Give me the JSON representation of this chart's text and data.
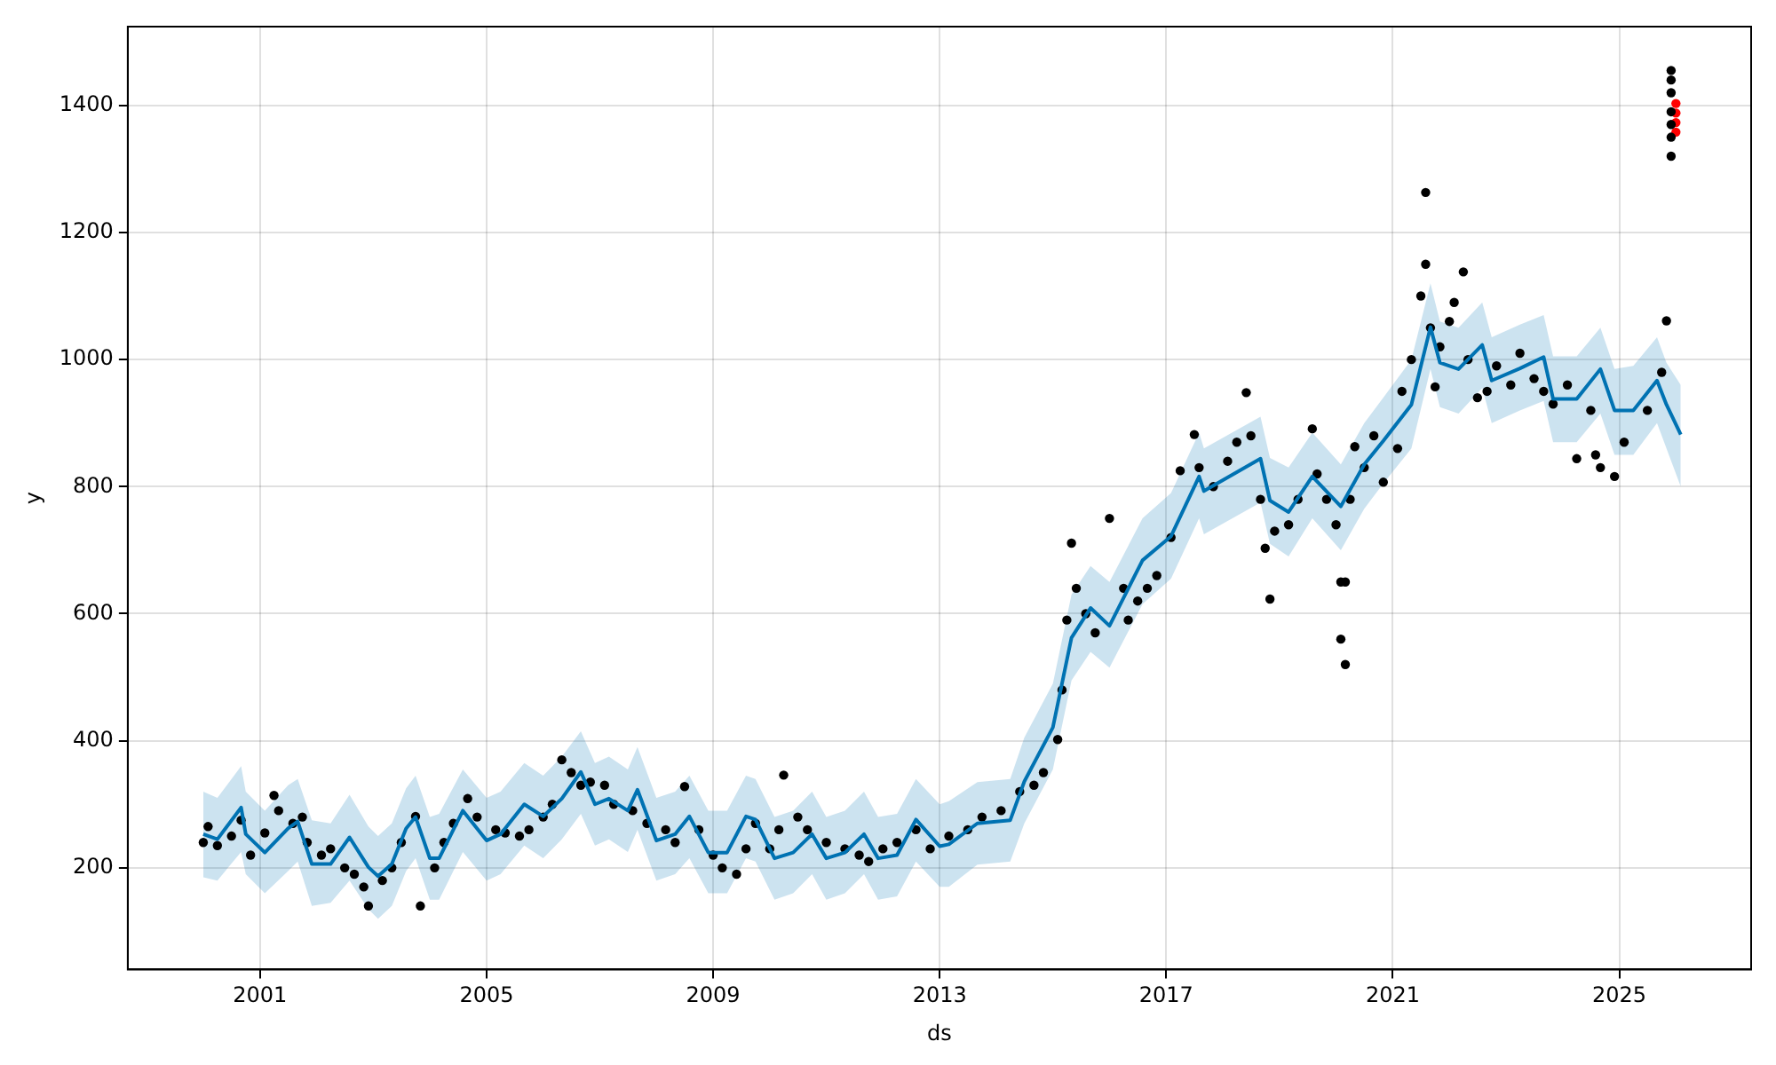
{
  "chart_data": {
    "type": "scatter",
    "xlabel": "ds",
    "ylabel": "y",
    "xlim": [
      "1998-09",
      "2027-05"
    ],
    "xticks": [
      "2001",
      "2005",
      "2009",
      "2013",
      "2017",
      "2021",
      "2025"
    ],
    "ylim": [
      40,
      1524
    ],
    "yticks": [
      200,
      400,
      600,
      800,
      1000,
      1200,
      1400
    ],
    "grid": true,
    "legend": false,
    "marker": "circle",
    "series": [
      {
        "type": "line",
        "color": "#0072b2",
        "marker": "none",
        "x": [
          "2000-01",
          "2000-04",
          "2000-09",
          "2000-10",
          "2001-02",
          "2001-07",
          "2001-09",
          "2001-12",
          "2002-04",
          "2002-08",
          "2002-12",
          "2003-02",
          "2003-05",
          "2003-08",
          "2003-10",
          "2004-01",
          "2004-03",
          "2004-08",
          "2005-01",
          "2005-04",
          "2005-09",
          "2006-01",
          "2006-05",
          "2006-09",
          "2006-12",
          "2007-03",
          "2007-07",
          "2007-09",
          "2008-01",
          "2008-05",
          "2008-08",
          "2008-12",
          "2009-04",
          "2009-08",
          "2009-10",
          "2010-02",
          "2010-06",
          "2010-10",
          "2011-01",
          "2011-05",
          "2011-09",
          "2011-12",
          "2012-04",
          "2012-08",
          "2013-01",
          "2013-03",
          "2013-09",
          "2014-04",
          "2014-07",
          "2015-01",
          "2015-05",
          "2015-09",
          "2016-01",
          "2016-08",
          "2017-02",
          "2017-08",
          "2017-09",
          "2018-09",
          "2018-11",
          "2019-03",
          "2019-08",
          "2020-02",
          "2020-07",
          "2020-11",
          "2021-05",
          "2021-09",
          "2021-11",
          "2022-03",
          "2022-08",
          "2022-10",
          "2023-04",
          "2023-09",
          "2023-11",
          "2024-04",
          "2024-09",
          "2024-12",
          "2025-04",
          "2025-09",
          "2025-11",
          "2026-02"
        ],
        "values": [
          253,
          245,
          295,
          253,
          224,
          262,
          273,
          206,
          206,
          248,
          201,
          187,
          206,
          262,
          280,
          215,
          215,
          290,
          243,
          253,
          300,
          281,
          309,
          351,
          300,
          309,
          290,
          323,
          243,
          253,
          281,
          224,
          224,
          281,
          276,
          215,
          224,
          253,
          215,
          224,
          253,
          215,
          220,
          276,
          234,
          237,
          270,
          275,
          336,
          421,
          562,
          609,
          581,
          684,
          722,
          816,
          793,
          844,
          778,
          760,
          816,
          769,
          835,
          872,
          929,
          1051,
          995,
          985,
          1023,
          967,
          986,
          1004,
          938,
          938,
          985,
          920,
          920,
          967,
          929,
          882
        ],
        "lower": [
          185,
          180,
          225,
          190,
          160,
          195,
          210,
          140,
          145,
          180,
          135,
          120,
          140,
          195,
          215,
          150,
          150,
          225,
          180,
          190,
          235,
          215,
          245,
          285,
          235,
          245,
          225,
          260,
          180,
          190,
          215,
          160,
          160,
          215,
          210,
          150,
          160,
          190,
          150,
          160,
          190,
          150,
          155,
          210,
          170,
          170,
          205,
          210,
          270,
          355,
          495,
          540,
          515,
          615,
          655,
          750,
          725,
          775,
          710,
          690,
          750,
          700,
          765,
          805,
          860,
          985,
          925,
          915,
          955,
          900,
          920,
          935,
          870,
          870,
          915,
          850,
          850,
          900,
          860,
          800
        ],
        "upper": [
          320,
          310,
          360,
          320,
          290,
          330,
          340,
          275,
          270,
          315,
          265,
          250,
          270,
          325,
          345,
          280,
          285,
          355,
          310,
          320,
          365,
          345,
          375,
          415,
          365,
          375,
          355,
          390,
          310,
          320,
          345,
          290,
          290,
          345,
          340,
          280,
          290,
          320,
          280,
          290,
          320,
          280,
          285,
          340,
          300,
          305,
          335,
          340,
          405,
          490,
          630,
          675,
          650,
          750,
          790,
          885,
          860,
          910,
          845,
          830,
          885,
          835,
          900,
          940,
          1000,
          1120,
          1060,
          1050,
          1090,
          1035,
          1055,
          1070,
          1005,
          1005,
          1050,
          985,
          990,
          1035,
          995,
          960
        ]
      },
      {
        "color": "#000000",
        "x": [
          "2000-01",
          "2000-02",
          "2000-04",
          "2000-07",
          "2000-09",
          "2000-11",
          "2001-02",
          "2001-04",
          "2001-05",
          "2001-08",
          "2001-10",
          "2001-11",
          "2002-02",
          "2002-04",
          "2002-07",
          "2002-09",
          "2002-11",
          "2002-12",
          "2003-03",
          "2003-05",
          "2003-07",
          "2003-10",
          "2003-11",
          "2004-02",
          "2004-04",
          "2004-06",
          "2004-09",
          "2004-11",
          "2005-03",
          "2005-05",
          "2005-08",
          "2005-10",
          "2006-01",
          "2006-03",
          "2006-05",
          "2006-07",
          "2006-09",
          "2006-11",
          "2007-02",
          "2007-04",
          "2007-08",
          "2007-11",
          "2008-03",
          "2008-05",
          "2008-07",
          "2008-10",
          "2009-01",
          "2009-03",
          "2009-06",
          "2009-08",
          "2009-10",
          "2010-01",
          "2010-03",
          "2010-04",
          "2010-07",
          "2010-09",
          "2011-01",
          "2011-05",
          "2011-08",
          "2011-10",
          "2012-01",
          "2012-04",
          "2012-08",
          "2012-11",
          "2013-03",
          "2013-07",
          "2013-10",
          "2014-02",
          "2014-06",
          "2014-09",
          "2014-11",
          "2015-02",
          "2015-03",
          "2015-04",
          "2015-05",
          "2015-06",
          "2015-08",
          "2015-10",
          "2016-01",
          "2016-04",
          "2016-05",
          "2016-07",
          "2016-09",
          "2016-11",
          "2017-02",
          "2017-04",
          "2017-07",
          "2017-08",
          "2017-11",
          "2018-02",
          "2018-04",
          "2018-06",
          "2018-07",
          "2018-09",
          "2018-10",
          "2018-11",
          "2018-12",
          "2019-03",
          "2019-05",
          "2019-08",
          "2019-09",
          "2019-11",
          "2020-01",
          "2020-02",
          "2020-02",
          "2020-03",
          "2020-03",
          "2020-04",
          "2020-05",
          "2020-07",
          "2020-09",
          "2020-11",
          "2021-02",
          "2021-03",
          "2021-05",
          "2021-07",
          "2021-08",
          "2021-08",
          "2021-09",
          "2021-10",
          "2021-11",
          "2022-01",
          "2022-02",
          "2022-04",
          "2022-05",
          "2022-07",
          "2022-09",
          "2022-11",
          "2023-02",
          "2023-04",
          "2023-07",
          "2023-09",
          "2023-11",
          "2024-02",
          "2024-04",
          "2024-07",
          "2024-08",
          "2024-09",
          "2024-12",
          "2025-02",
          "2025-07",
          "2025-10",
          "2025-11",
          "2025-12",
          "2025-12",
          "2025-12",
          "2025-12",
          "2025-12",
          "2025-12",
          "2025-12"
        ],
        "values": [
          240,
          265,
          235,
          250,
          275,
          220,
          255,
          314,
          290,
          270,
          280,
          240,
          220,
          230,
          200,
          190,
          170,
          140,
          180,
          200,
          240,
          281,
          140,
          200,
          240,
          270,
          309,
          280,
          260,
          255,
          250,
          260,
          280,
          300,
          370,
          350,
          330,
          335,
          330,
          300,
          290,
          270,
          260,
          240,
          328,
          260,
          220,
          200,
          190,
          230,
          270,
          230,
          260,
          346,
          280,
          260,
          240,
          230,
          220,
          210,
          230,
          240,
          260,
          230,
          250,
          260,
          280,
          290,
          320,
          330,
          350,
          402,
          480,
          590,
          711,
          640,
          600,
          570,
          750,
          640,
          590,
          620,
          640,
          660,
          720,
          825,
          882,
          830,
          800,
          840,
          870,
          948,
          880,
          780,
          703,
          623,
          730,
          740,
          780,
          891,
          820,
          780,
          740,
          650,
          560,
          520,
          650,
          780,
          863,
          830,
          880,
          807,
          860,
          950,
          1000,
          1100,
          1263,
          1150,
          1050,
          957,
          1020,
          1060,
          1090,
          1138,
          1000,
          940,
          950,
          990,
          960,
          1010,
          970,
          950,
          930,
          960,
          844,
          920,
          850,
          830,
          816,
          870,
          920,
          980,
          1061,
          1320,
          1350,
          1370,
          1390,
          1420,
          1440,
          1455
        ]
      },
      {
        "color": "#ff0000",
        "x": [
          "2026-01",
          "2026-01",
          "2026-01",
          "2026-01"
        ],
        "values": [
          1358,
          1373,
          1388,
          1403
        ]
      }
    ]
  }
}
